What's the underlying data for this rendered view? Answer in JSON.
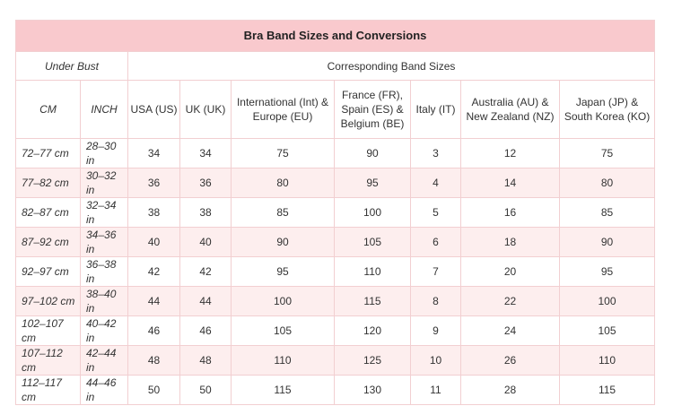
{
  "header": {
    "title": "Bra Band Sizes and Conversions",
    "under_bust": "Under Bust",
    "corresponding": "Corresponding Band Sizes"
  },
  "columns": [
    [
      "CM"
    ],
    [
      "INCH"
    ],
    [
      "USA (US)"
    ],
    [
      "UK (UK)"
    ],
    [
      "International (Int) &",
      "Europe (EU)"
    ],
    [
      "France (FR),",
      "Spain (ES) &",
      "Belgium (BE)"
    ],
    [
      "Italy (IT)"
    ],
    [
      "Australia (AU) &",
      "New Zealand (NZ)"
    ],
    [
      "Japan (JP) &",
      "South Korea (KO)"
    ]
  ],
  "rows": [
    [
      "72–77 cm",
      "28–30 in",
      34,
      34,
      75,
      90,
      3,
      12,
      75
    ],
    [
      "77–82 cm",
      "30–32 in",
      36,
      36,
      80,
      95,
      4,
      14,
      80
    ],
    [
      "82–87 cm",
      "32–34 in",
      38,
      38,
      85,
      100,
      5,
      16,
      85
    ],
    [
      "87–92 cm",
      "34–36 in",
      40,
      40,
      90,
      105,
      6,
      18,
      90
    ],
    [
      "92–97 cm",
      "36–38 in",
      42,
      42,
      95,
      110,
      7,
      20,
      95
    ],
    [
      "97–102 cm",
      "38–40 in",
      44,
      44,
      100,
      115,
      8,
      22,
      100
    ],
    [
      "102–107 cm",
      "40–42 in",
      46,
      46,
      105,
      120,
      9,
      24,
      105
    ],
    [
      "107–112 cm",
      "42–44 in",
      48,
      48,
      110,
      125,
      10,
      26,
      110
    ],
    [
      "112–117 cm",
      "44–46 in",
      50,
      50,
      115,
      130,
      11,
      28,
      115
    ]
  ]
}
